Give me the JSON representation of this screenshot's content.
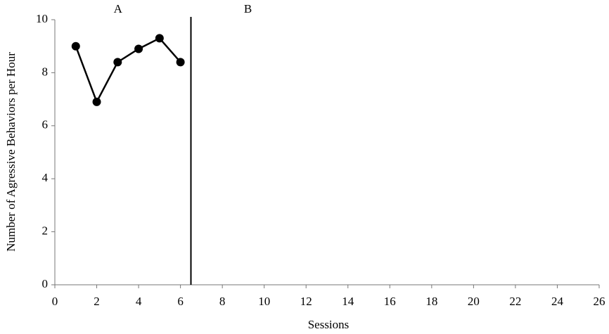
{
  "chart_data": {
    "type": "line",
    "x_label": "Sessions",
    "y_label": "Number of Agressive Behaviors per Hour",
    "x": [
      1,
      2,
      3,
      4,
      5,
      6
    ],
    "series": [
      {
        "name": null,
        "color": "#000000",
        "values": [
          9.0,
          6.9,
          8.4,
          8.9,
          9.3,
          8.4
        ]
      }
    ],
    "xlim": [
      0,
      26
    ],
    "xticks": [
      0,
      2,
      4,
      6,
      8,
      10,
      12,
      14,
      16,
      18,
      20,
      22,
      24,
      26
    ],
    "ylim": [
      0,
      10
    ],
    "yticks": [
      0,
      2,
      4,
      6,
      8,
      10
    ],
    "grid": false,
    "phase_change": 6.5,
    "phases": [
      "A",
      "B"
    ]
  }
}
